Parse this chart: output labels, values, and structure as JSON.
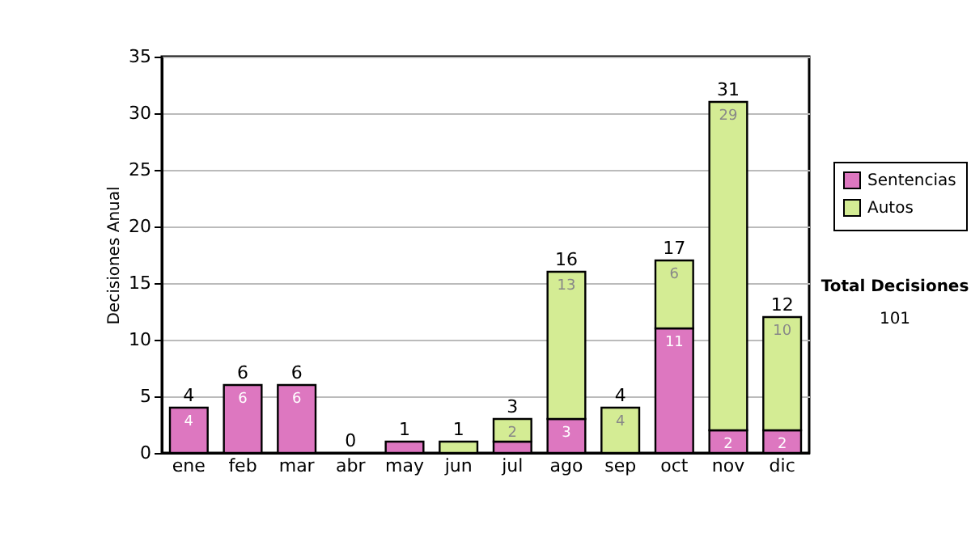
{
  "chart_data": {
    "type": "bar",
    "stacked": true,
    "ylabel": "Decisiones Anual",
    "categories": [
      "ene",
      "feb",
      "mar",
      "abr",
      "may",
      "jun",
      "jul",
      "ago",
      "sep",
      "oct",
      "nov",
      "dic"
    ],
    "series": [
      {
        "name": "Sentencias",
        "color": "#dd77c0",
        "values": [
          4,
          6,
          6,
          0,
          1,
          0,
          1,
          3,
          0,
          11,
          2,
          2
        ],
        "value_labels": [
          "4",
          "6",
          "6",
          null,
          null,
          null,
          null,
          "3",
          null,
          "11",
          "2",
          "2"
        ]
      },
      {
        "name": "Autos",
        "color": "#d4ec94",
        "values": [
          0,
          0,
          0,
          0,
          0,
          1,
          2,
          13,
          4,
          6,
          29,
          10
        ],
        "value_labels": [
          null,
          null,
          null,
          null,
          null,
          null,
          "2",
          "13",
          "4",
          "6",
          "29",
          "10"
        ]
      }
    ],
    "totals": [
      "4",
      "6",
      "6",
      "0",
      "1",
      "1",
      "3",
      "16",
      "4",
      "17",
      "31",
      "12"
    ],
    "ylim": [
      0,
      35
    ],
    "yticks": [
      0,
      5,
      10,
      15,
      20,
      25,
      30,
      35
    ],
    "grid": "y",
    "legend": "right",
    "annotations": [
      "Total Decisiones",
      "101"
    ]
  }
}
